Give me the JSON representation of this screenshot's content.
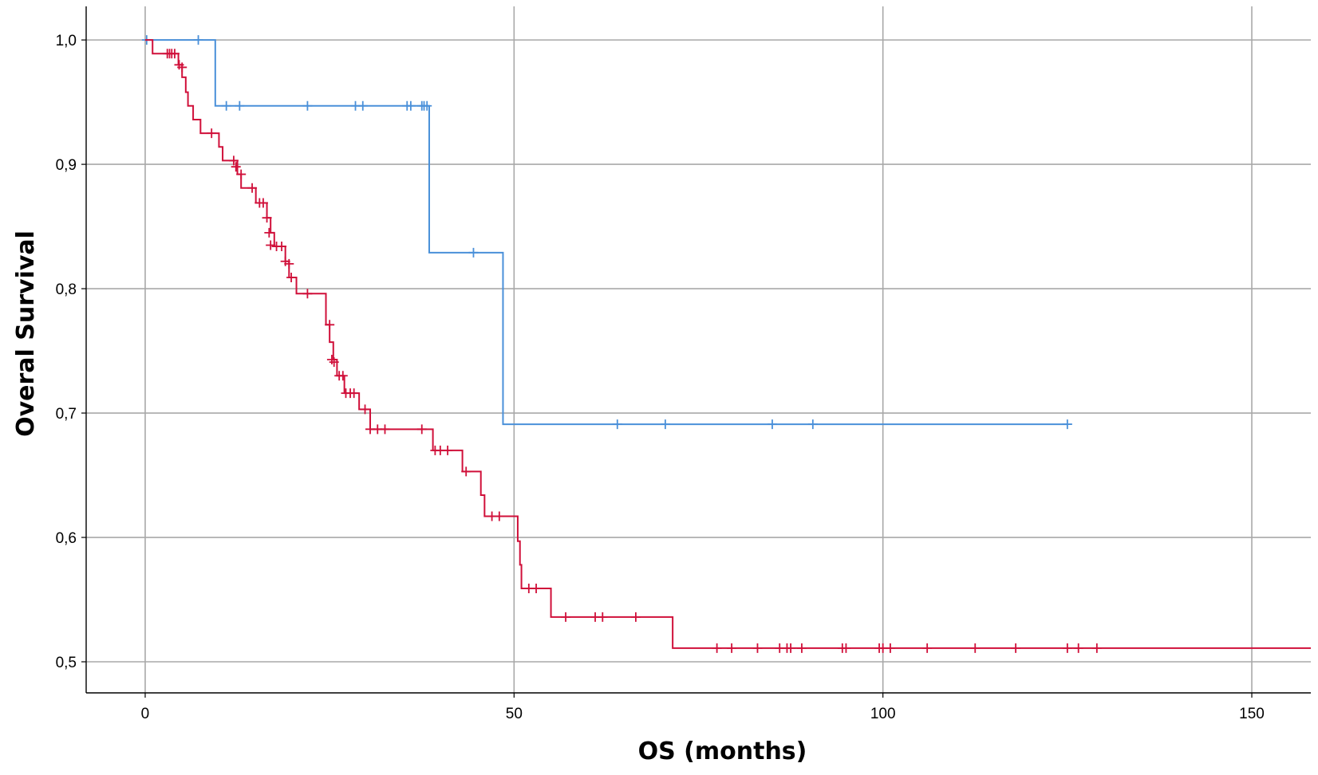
{
  "chart_data": {
    "type": "line",
    "subtype": "kaplan-meier-step",
    "title": "",
    "xlabel": "OS (months)",
    "ylabel": "Overal Survival",
    "xlim": [
      -8,
      158
    ],
    "ylim": [
      0.475,
      1.027
    ],
    "x_ticks": [
      0,
      50,
      100,
      150
    ],
    "x_tick_labels": [
      "0",
      "50",
      "100",
      "150"
    ],
    "y_ticks": [
      0.5,
      0.6,
      0.7,
      0.8,
      0.9,
      1.0
    ],
    "y_tick_labels": [
      "0,5",
      "0,6",
      "0,7",
      "0,8",
      "0,9",
      "1,0"
    ],
    "grid": true,
    "legend": "none",
    "series": [
      {
        "color": "#4a90d9",
        "steps": [
          [
            0,
            1.0
          ],
          [
            9.5,
            0.947
          ],
          [
            38.5,
            0.829
          ],
          [
            48.5,
            0.691
          ],
          [
            125,
            0.691
          ]
        ],
        "censored": [
          [
            0.2,
            1.0
          ],
          [
            7.2,
            1.0
          ],
          [
            11,
            0.947
          ],
          [
            12.8,
            0.947
          ],
          [
            22,
            0.947
          ],
          [
            28.5,
            0.947
          ],
          [
            29.5,
            0.947
          ],
          [
            35.5,
            0.947
          ],
          [
            36,
            0.947
          ],
          [
            37.5,
            0.947
          ],
          [
            37.8,
            0.947
          ],
          [
            38.2,
            0.947
          ],
          [
            44.5,
            0.829
          ],
          [
            64,
            0.691
          ],
          [
            70.5,
            0.691
          ],
          [
            85,
            0.691
          ],
          [
            90.5,
            0.691
          ],
          [
            125,
            0.691
          ]
        ]
      },
      {
        "color": "#d0103a",
        "steps": [
          [
            0,
            1.0
          ],
          [
            1.0,
            0.989
          ],
          [
            4.5,
            0.98
          ],
          [
            5.0,
            0.97
          ],
          [
            5.5,
            0.958
          ],
          [
            5.8,
            0.947
          ],
          [
            6.5,
            0.936
          ],
          [
            7.5,
            0.925
          ],
          [
            10.0,
            0.914
          ],
          [
            10.5,
            0.903
          ],
          [
            12.5,
            0.892
          ],
          [
            13.0,
            0.881
          ],
          [
            15.0,
            0.869
          ],
          [
            16.5,
            0.857
          ],
          [
            17.0,
            0.845
          ],
          [
            17.5,
            0.834
          ],
          [
            19.0,
            0.822
          ],
          [
            19.5,
            0.809
          ],
          [
            20.5,
            0.796
          ],
          [
            24.5,
            0.771
          ],
          [
            25.0,
            0.757
          ],
          [
            25.5,
            0.743
          ],
          [
            26.0,
            0.73
          ],
          [
            27.0,
            0.716
          ],
          [
            29.0,
            0.703
          ],
          [
            30.5,
            0.687
          ],
          [
            39.0,
            0.67
          ],
          [
            43.0,
            0.653
          ],
          [
            45.5,
            0.634
          ],
          [
            46.0,
            0.617
          ],
          [
            50.5,
            0.597
          ],
          [
            50.8,
            0.578
          ],
          [
            51.0,
            0.559
          ],
          [
            55.0,
            0.536
          ],
          [
            71.5,
            0.511
          ],
          [
            158,
            0.511
          ]
        ],
        "censored": [
          [
            3.0,
            0.989
          ],
          [
            3.3,
            0.989
          ],
          [
            3.6,
            0.989
          ],
          [
            4.0,
            0.989
          ],
          [
            4.6,
            0.98
          ],
          [
            5.0,
            0.978
          ],
          [
            9.0,
            0.925
          ],
          [
            12.0,
            0.903
          ],
          [
            12.3,
            0.898
          ],
          [
            13.0,
            0.892
          ],
          [
            14.5,
            0.881
          ],
          [
            15.5,
            0.869
          ],
          [
            16.0,
            0.869
          ],
          [
            16.5,
            0.857
          ],
          [
            16.8,
            0.845
          ],
          [
            17.0,
            0.835
          ],
          [
            17.8,
            0.834
          ],
          [
            18.5,
            0.834
          ],
          [
            19.0,
            0.822
          ],
          [
            19.5,
            0.82
          ],
          [
            19.8,
            0.809
          ],
          [
            22.0,
            0.796
          ],
          [
            25.0,
            0.771
          ],
          [
            25.3,
            0.743
          ],
          [
            25.6,
            0.741
          ],
          [
            26.3,
            0.73
          ],
          [
            26.8,
            0.73
          ],
          [
            27.2,
            0.716
          ],
          [
            27.8,
            0.716
          ],
          [
            28.3,
            0.716
          ],
          [
            29.8,
            0.703
          ],
          [
            30.5,
            0.687
          ],
          [
            31.5,
            0.687
          ],
          [
            32.5,
            0.687
          ],
          [
            37.5,
            0.687
          ],
          [
            39.3,
            0.67
          ],
          [
            40.0,
            0.67
          ],
          [
            41.0,
            0.67
          ],
          [
            43.5,
            0.653
          ],
          [
            47.0,
            0.617
          ],
          [
            48.0,
            0.617
          ],
          [
            52.0,
            0.559
          ],
          [
            53.0,
            0.559
          ],
          [
            57.0,
            0.536
          ],
          [
            61.0,
            0.536
          ],
          [
            62.0,
            0.536
          ],
          [
            66.5,
            0.536
          ],
          [
            77.5,
            0.511
          ],
          [
            79.5,
            0.511
          ],
          [
            83.0,
            0.511
          ],
          [
            86.0,
            0.511
          ],
          [
            87.0,
            0.511
          ],
          [
            87.5,
            0.511
          ],
          [
            89.0,
            0.511
          ],
          [
            94.5,
            0.511
          ],
          [
            95.0,
            0.511
          ],
          [
            99.5,
            0.511
          ],
          [
            100.0,
            0.511
          ],
          [
            101.0,
            0.511
          ],
          [
            106.0,
            0.511
          ],
          [
            112.5,
            0.511
          ],
          [
            118.0,
            0.511
          ],
          [
            125.0,
            0.511
          ],
          [
            126.5,
            0.511
          ],
          [
            129.0,
            0.511
          ]
        ]
      }
    ]
  }
}
